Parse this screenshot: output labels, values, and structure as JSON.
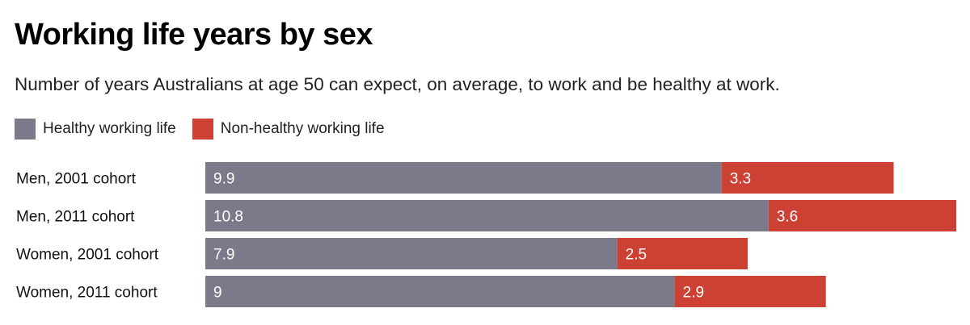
{
  "header": {
    "title": "Working life years by sex",
    "subtitle": "Number of years Australians at age 50 can expect, on average, to work and be healthy at work."
  },
  "colors": {
    "healthy": "#7a7a8a",
    "non_healthy": "#cc4133"
  },
  "chart_data": {
    "type": "bar",
    "orientation": "horizontal",
    "stacked": true,
    "title": "Working life years by sex",
    "subtitle": "Number of years Australians at age 50 can expect, on average, to work and be healthy at work.",
    "categories": [
      "Men, 2001 cohort",
      "Men, 2011 cohort",
      "Women, 2001 cohort",
      "Women, 2011 cohort"
    ],
    "series": [
      {
        "name": "Healthy working life",
        "values": [
          9.9,
          10.8,
          7.9,
          9
        ]
      },
      {
        "name": "Non-healthy working life",
        "values": [
          3.3,
          3.6,
          2.5,
          2.9
        ]
      }
    ],
    "data_labels": [
      [
        "9.9",
        "10.8",
        "7.9",
        "9"
      ],
      [
        "3.3",
        "3.6",
        "2.5",
        "2.9"
      ]
    ],
    "xlim": [
      0,
      14.4
    ],
    "grid": false,
    "legend_position": "top-left"
  }
}
